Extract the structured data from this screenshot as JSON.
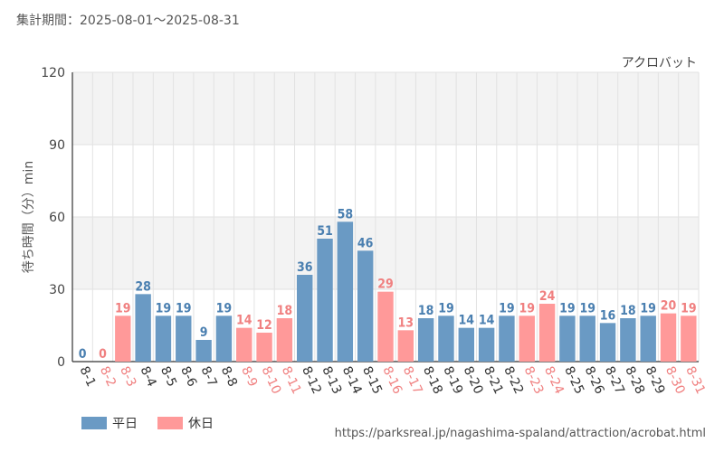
{
  "header": {
    "period": "集計期間：2025-08-01〜2025-08-31"
  },
  "footer": {
    "url": "https://parksreal.jp/nagashima-spaland/attraction/acrobat.html"
  },
  "legend": {
    "weekday": "平日",
    "holiday": "休日"
  },
  "colors": {
    "weekday": "#6a9ac4",
    "weekday_text": "#4a7fb0",
    "holiday": "#ff9999",
    "holiday_text": "#f08080"
  },
  "chart_data": {
    "type": "bar",
    "title": "アクロバット",
    "xlabel": "",
    "ylabel": "待ち時間（分）min",
    "ylim": [
      0,
      120
    ],
    "yticks": [
      0,
      30,
      60,
      90,
      120
    ],
    "categories": [
      "8-1",
      "8-2",
      "8-3",
      "8-4",
      "8-5",
      "8-6",
      "8-7",
      "8-8",
      "8-9",
      "8-10",
      "8-11",
      "8-12",
      "8-13",
      "8-14",
      "8-15",
      "8-16",
      "8-17",
      "8-18",
      "8-19",
      "8-20",
      "8-21",
      "8-22",
      "8-23",
      "8-24",
      "8-25",
      "8-26",
      "8-27",
      "8-28",
      "8-29",
      "8-30",
      "8-31"
    ],
    "values": [
      0,
      0,
      19,
      28,
      19,
      19,
      9,
      19,
      14,
      12,
      18,
      36,
      51,
      58,
      46,
      29,
      13,
      18,
      19,
      14,
      14,
      19,
      19,
      24,
      19,
      19,
      16,
      18,
      19,
      20,
      19
    ],
    "day_type": [
      "weekday",
      "holiday",
      "holiday",
      "weekday",
      "weekday",
      "weekday",
      "weekday",
      "weekday",
      "holiday",
      "holiday",
      "holiday",
      "weekday",
      "weekday",
      "weekday",
      "weekday",
      "holiday",
      "holiday",
      "weekday",
      "weekday",
      "weekday",
      "weekday",
      "weekday",
      "holiday",
      "holiday",
      "weekday",
      "weekday",
      "weekday",
      "weekday",
      "weekday",
      "holiday",
      "holiday"
    ],
    "series": [
      {
        "name": "平日",
        "key": "weekday"
      },
      {
        "name": "休日",
        "key": "holiday"
      }
    ]
  }
}
